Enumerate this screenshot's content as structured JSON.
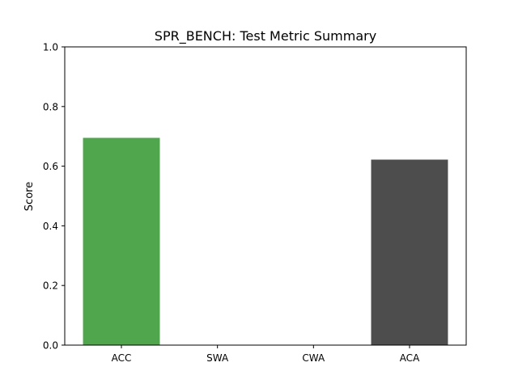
{
  "chart_data": {
    "type": "bar",
    "title": "SPR_BENCH: Test Metric Summary",
    "xlabel": "",
    "ylabel": "Score",
    "categories": [
      "ACC",
      "SWA",
      "CWA",
      "ACA"
    ],
    "values": [
      0.695,
      0.0,
      0.0,
      0.622
    ],
    "colors": [
      "#4fa64d",
      "#e24a33",
      "#348abd",
      "#4d4d4d"
    ],
    "ylim": [
      0,
      1.0
    ],
    "yticks": [
      "0.0",
      "0.2",
      "0.4",
      "0.6",
      "0.8",
      "1.0"
    ],
    "grid": false,
    "legend": false
  }
}
